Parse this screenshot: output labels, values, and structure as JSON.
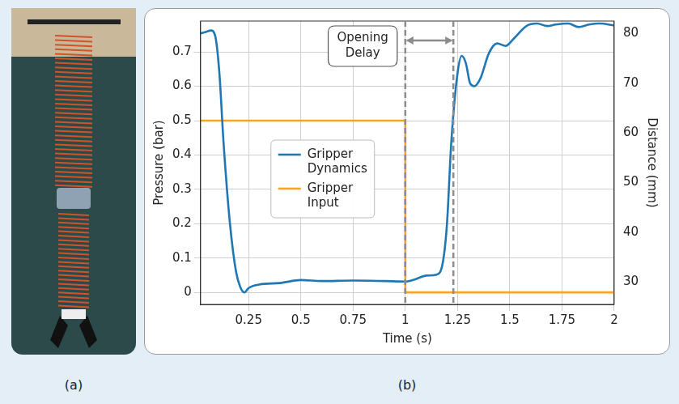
{
  "panel_labels": [
    "(a)",
    "(b)"
  ],
  "chart_data": {
    "type": "line",
    "x_label": "Time (s)",
    "y_label": "Pressure (bar)",
    "y2_label": "Distance (mm)",
    "xlim": [
      0.02,
      2
    ],
    "xticks": [
      0.25,
      0.5,
      0.75,
      1,
      1.25,
      1.5,
      1.75,
      2
    ],
    "ylim": [
      -0.035,
      0.79
    ],
    "yticks": [
      0,
      0.1,
      0.2,
      0.3,
      0.4,
      0.5,
      0.6,
      0.7
    ],
    "y2lim": [
      25.5,
      82.5
    ],
    "y2ticks": [
      30,
      40,
      50,
      60,
      70,
      80
    ],
    "grid": true,
    "legend": "left",
    "series": [
      {
        "name": "Gripper Dynamics",
        "color": "#1f77b4",
        "axis": "y2",
        "marker": "none",
        "line_style": "solid",
        "x": [
          0.02,
          0.05,
          0.07,
          0.09,
          0.11,
          0.13,
          0.16,
          0.19,
          0.21,
          0.23,
          0.25,
          0.3,
          0.4,
          0.5,
          0.6,
          0.75,
          0.9,
          1.0,
          1.05,
          1.1,
          1.15,
          1.18,
          1.2,
          1.22,
          1.25,
          1.27,
          1.29,
          1.31,
          1.33,
          1.36,
          1.4,
          1.44,
          1.48,
          1.52,
          1.58,
          1.63,
          1.68,
          1.72,
          1.78,
          1.83,
          1.88,
          1.93,
          2.0
        ],
        "values": [
          80.0,
          80.4,
          80.6,
          79.5,
          72,
          58,
          42,
          32,
          29,
          27.9,
          28.8,
          29.5,
          29.8,
          30.4,
          30.2,
          30.3,
          30.2,
          30.1,
          30.6,
          31.3,
          31.5,
          34,
          42,
          58,
          72,
          75.5,
          74,
          70,
          69.4,
          71,
          76,
          78,
          77.5,
          79,
          81.5,
          82,
          81.5,
          81.8,
          82,
          81.3,
          81.8,
          82,
          81.6
        ]
      },
      {
        "name": "Gripper Input",
        "color": "#f5a623",
        "axis": "y",
        "marker": "none",
        "line_style": "solid",
        "x": [
          0.02,
          1,
          1,
          2
        ],
        "values": [
          0.5,
          0.5,
          0,
          0
        ]
      }
    ],
    "annotations": [
      {
        "text": "Opening Delay",
        "x_start": 1,
        "x_end": 1.23
      }
    ]
  }
}
